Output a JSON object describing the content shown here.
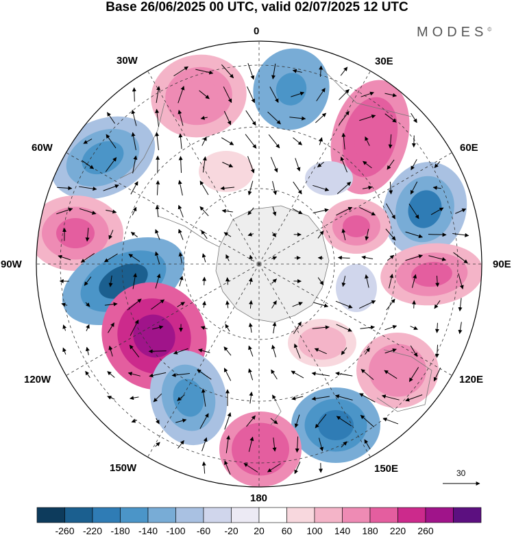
{
  "header": {
    "title": "Base 26/06/2025 00 UTC, valid 02/07/2025 12 UTC",
    "brand": "MODES",
    "brand_mark": "©"
  },
  "map": {
    "projection": "south-polar-stereographic",
    "longitude_labels": {
      "top": "0",
      "upper_right": "30E",
      "right_upper": "60E",
      "right": "90E",
      "right_lower": "120E",
      "lower_right": "150E",
      "bottom": "180",
      "lower_left": "150W",
      "left_lower": "120W",
      "left": "90W",
      "left_upper": "60W",
      "upper_left": "30W"
    },
    "vector_reference": {
      "label": "30"
    }
  },
  "colorbar": {
    "tick_labels": [
      "-260",
      "-220",
      "-180",
      "-140",
      "-100",
      "-60",
      "-20",
      "20",
      "60",
      "100",
      "140",
      "180",
      "220",
      "260"
    ],
    "colors": [
      "#0d3b5c",
      "#1b5f8f",
      "#2f7cb5",
      "#4b95c8",
      "#78acd6",
      "#a9c1e2",
      "#d0d6ec",
      "#eceaf4",
      "#ffffff",
      "#f8d8de",
      "#f4b4c8",
      "#ee8bb4",
      "#e45e9f",
      "#cc2a8c",
      "#a0148a",
      "#5c1080"
    ]
  }
}
